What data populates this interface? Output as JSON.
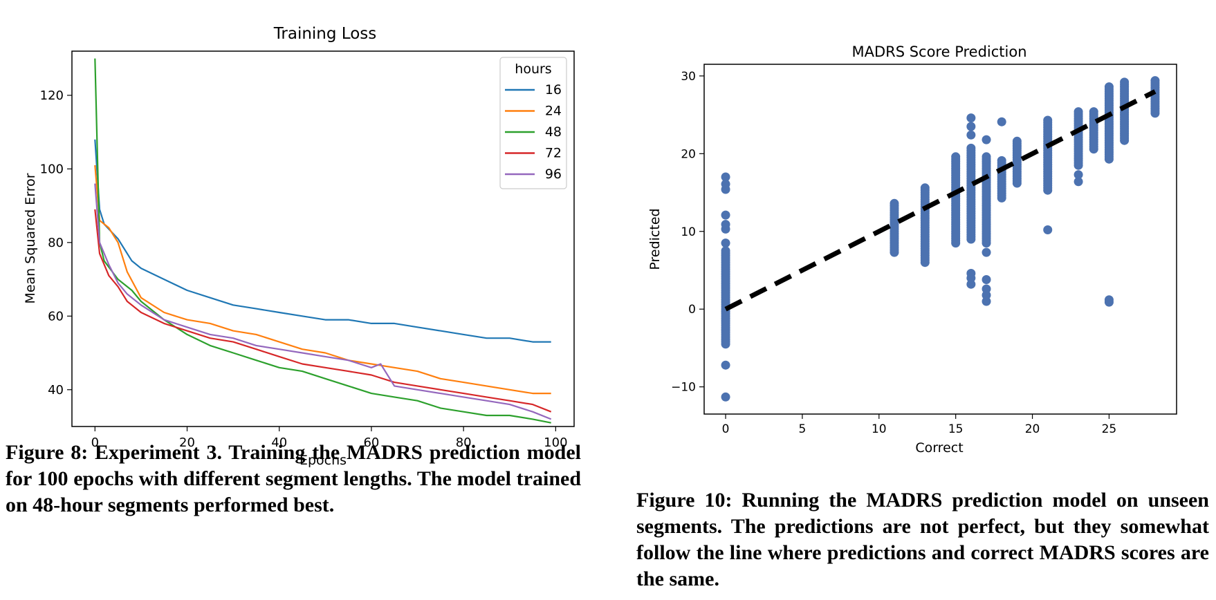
{
  "chart_data": [
    {
      "type": "line",
      "title": "Training Loss",
      "xlabel": "Epochs",
      "ylabel": "Mean Squared Error",
      "xlim": [
        -5,
        104
      ],
      "ylim": [
        30,
        132
      ],
      "xticks": [
        0,
        20,
        40,
        60,
        80,
        100
      ],
      "yticks": [
        40,
        60,
        80,
        100,
        120
      ],
      "legend_title": "hours",
      "legend_position": "top-right",
      "series": [
        {
          "name": "16",
          "color": "#1f77b4",
          "x": [
            0,
            1,
            2,
            5,
            8,
            10,
            15,
            20,
            25,
            30,
            35,
            40,
            45,
            50,
            55,
            60,
            65,
            70,
            75,
            80,
            85,
            90,
            95,
            99
          ],
          "values": [
            108,
            89,
            85,
            81,
            75,
            73,
            70,
            67,
            65,
            63,
            62,
            61,
            60,
            59,
            59,
            58,
            58,
            57,
            56,
            55,
            54,
            54,
            53,
            53
          ]
        },
        {
          "name": "24",
          "color": "#ff7f0e",
          "x": [
            0,
            1,
            3,
            5,
            7,
            10,
            15,
            20,
            25,
            30,
            35,
            40,
            45,
            50,
            55,
            60,
            65,
            70,
            75,
            80,
            85,
            90,
            95,
            99
          ],
          "values": [
            101,
            86,
            84,
            80,
            72,
            65,
            61,
            59,
            58,
            56,
            55,
            53,
            51,
            50,
            48,
            47,
            46,
            45,
            43,
            42,
            41,
            40,
            39,
            39
          ]
        },
        {
          "name": "48",
          "color": "#2ca02c",
          "x": [
            0,
            1,
            2,
            5,
            8,
            10,
            15,
            20,
            25,
            30,
            35,
            40,
            45,
            50,
            55,
            60,
            65,
            70,
            75,
            80,
            85,
            90,
            95,
            99
          ],
          "values": [
            130,
            80,
            75,
            70,
            67,
            64,
            59,
            55,
            52,
            50,
            48,
            46,
            45,
            43,
            41,
            39,
            38,
            37,
            35,
            34,
            33,
            33,
            32,
            31
          ]
        },
        {
          "name": "72",
          "color": "#d62728",
          "x": [
            0,
            1,
            3,
            5,
            7,
            10,
            15,
            20,
            25,
            30,
            35,
            40,
            45,
            50,
            55,
            60,
            65,
            70,
            75,
            80,
            85,
            90,
            95,
            99
          ],
          "values": [
            89,
            77,
            71,
            68,
            64,
            61,
            58,
            56,
            54,
            53,
            51,
            49,
            47,
            46,
            45,
            44,
            42,
            41,
            40,
            39,
            38,
            37,
            36,
            34
          ]
        },
        {
          "name": "96",
          "color": "#9467bd",
          "x": [
            0,
            1,
            3,
            5,
            7,
            10,
            15,
            20,
            25,
            30,
            35,
            40,
            45,
            50,
            55,
            60,
            62,
            64,
            65,
            70,
            75,
            80,
            85,
            90,
            95,
            99
          ],
          "values": [
            96,
            80,
            74,
            69,
            66,
            63,
            59,
            57,
            55,
            54,
            52,
            51,
            50,
            49,
            48,
            46,
            47,
            43,
            41,
            40,
            39,
            38,
            37,
            36,
            34,
            32
          ]
        }
      ]
    },
    {
      "type": "scatter",
      "title": "MADRS Score Prediction",
      "xlabel": "Correct",
      "ylabel": "Predicted",
      "xlim": [
        -1.4,
        29.4
      ],
      "ylim": [
        -13.5,
        31.5
      ],
      "xticks": [
        0,
        5,
        10,
        15,
        20,
        25
      ],
      "yticks": [
        -10,
        0,
        10,
        20,
        30
      ],
      "point_color": "#4c72b0",
      "reference_line": {
        "x": [
          0,
          28
        ],
        "y": [
          0,
          28
        ],
        "style": "dashed",
        "color": "#000000"
      },
      "columns": [
        {
          "x": 0,
          "y_min": -4.5,
          "y_max": 7.5,
          "outliers": [
            -7.2,
            -11.3,
            8.5,
            10.3,
            10.9,
            12.1,
            15.4,
            16.1,
            17.0
          ]
        },
        {
          "x": 11,
          "y_min": 7.3,
          "y_max": 13.8,
          "outliers": []
        },
        {
          "x": 13,
          "y_min": 6.0,
          "y_max": 15.6,
          "outliers": []
        },
        {
          "x": 15,
          "y_min": 8.5,
          "y_max": 19.6,
          "outliers": []
        },
        {
          "x": 16,
          "y_min": 9.0,
          "y_max": 20.7,
          "outliers": [
            3.2,
            4.0,
            4.6,
            22.4,
            23.5,
            24.6
          ]
        },
        {
          "x": 17,
          "y_min": 8.5,
          "y_max": 19.6,
          "outliers": [
            1.0,
            1.8,
            2.6,
            3.8,
            7.3,
            21.8
          ]
        },
        {
          "x": 18,
          "y_min": 14.3,
          "y_max": 19.1,
          "outliers": [
            24.1
          ]
        },
        {
          "x": 19,
          "y_min": 16.2,
          "y_max": 21.6,
          "outliers": []
        },
        {
          "x": 21,
          "y_min": 15.3,
          "y_max": 24.3,
          "outliers": [
            10.2
          ]
        },
        {
          "x": 23,
          "y_min": 18.5,
          "y_max": 25.6,
          "outliers": [
            16.4,
            17.3
          ]
        },
        {
          "x": 24,
          "y_min": 20.6,
          "y_max": 25.4,
          "outliers": []
        },
        {
          "x": 25,
          "y_min": 19.3,
          "y_max": 28.7,
          "outliers": [
            0.9,
            1.2
          ]
        },
        {
          "x": 26,
          "y_min": 21.7,
          "y_max": 29.2,
          "outliers": []
        },
        {
          "x": 28,
          "y_min": 25.2,
          "y_max": 29.6,
          "outliers": []
        }
      ]
    }
  ],
  "captions": {
    "left": "Figure 8: Experiment 3. Training the MADRS prediction model for 100 epochs with different segment lengths. The model trained on 48-hour segments performed best.",
    "right": "Figure 10: Running the MADRS prediction model on unseen segments. The predictions are not perfect, but they somewhat follow the line where predictions and correct MADRS scores are the same."
  }
}
